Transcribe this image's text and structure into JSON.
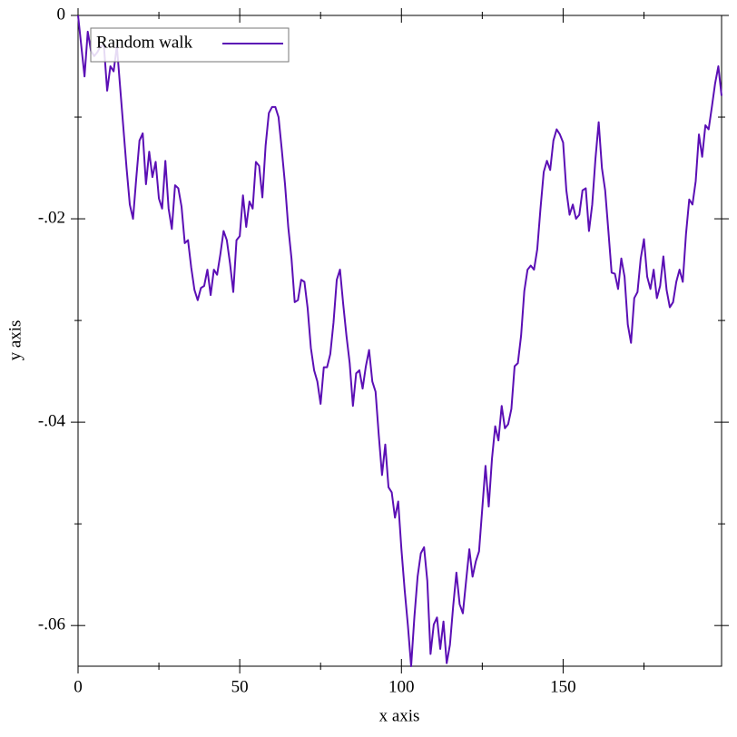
{
  "chart_data": {
    "type": "line",
    "x_label": "x axis",
    "y_label": "y axis",
    "x": [
      0,
      1,
      2,
      3,
      4,
      5,
      6,
      7,
      8,
      9,
      10,
      11,
      12,
      13,
      14,
      15,
      16,
      17,
      18,
      19,
      20,
      21,
      22,
      23,
      24,
      25,
      26,
      27,
      28,
      29,
      30,
      31,
      32,
      33,
      34,
      35,
      36,
      37,
      38,
      39,
      40,
      41,
      42,
      43,
      44,
      45,
      46,
      47,
      48,
      49,
      50,
      51,
      52,
      53,
      54,
      55,
      56,
      57,
      58,
      59,
      60,
      61,
      62,
      63,
      64,
      65,
      66,
      67,
      68,
      69,
      70,
      71,
      72,
      73,
      74,
      75,
      76,
      77,
      78,
      79,
      80,
      81,
      82,
      83,
      84,
      85,
      86,
      87,
      88,
      89,
      90,
      91,
      92,
      93,
      94,
      95,
      96,
      97,
      98,
      99,
      100,
      101,
      102,
      103,
      104,
      105,
      106,
      107,
      108,
      109,
      110,
      111,
      112,
      113,
      114,
      115,
      116,
      117,
      118,
      119,
      120,
      121,
      122,
      123,
      124,
      125,
      126,
      127,
      128,
      129,
      130,
      131,
      132,
      133,
      134,
      135,
      136,
      137,
      138,
      139,
      140,
      141,
      142,
      143,
      144,
      145,
      146,
      147,
      148,
      149,
      150,
      151,
      152,
      153,
      154,
      155,
      156,
      157,
      158,
      159,
      160,
      161,
      162,
      163,
      164,
      165,
      166,
      167,
      168,
      169,
      170,
      171,
      172,
      173,
      174,
      175,
      176,
      177,
      178,
      179,
      180,
      181,
      182,
      183,
      184,
      185,
      186,
      187,
      188,
      189,
      190,
      191,
      192,
      193,
      194,
      195,
      196,
      197,
      198,
      199
    ],
    "series": [
      {
        "name": "Random walk",
        "color": "#5b0fb5",
        "values": [
          0,
          -0.003,
          -0.006,
          -0.0016,
          -0.0035,
          -0.004,
          -0.0036,
          -0.003,
          -0.003,
          -0.0074,
          -0.005,
          -0.0055,
          -0.003,
          -0.007,
          -0.011,
          -0.015,
          -0.0186,
          -0.02,
          -0.016,
          -0.0123,
          -0.0116,
          -0.0166,
          -0.0134,
          -0.0159,
          -0.0144,
          -0.018,
          -0.019,
          -0.0143,
          -0.019,
          -0.021,
          -0.0167,
          -0.017,
          -0.0188,
          -0.0224,
          -0.0221,
          -0.0248,
          -0.027,
          -0.028,
          -0.0268,
          -0.0266,
          -0.025,
          -0.0275,
          -0.025,
          -0.0255,
          -0.0235,
          -0.0212,
          -0.0221,
          -0.0244,
          -0.0272,
          -0.0221,
          -0.0217,
          -0.0177,
          -0.0208,
          -0.0183,
          -0.019,
          -0.0144,
          -0.0148,
          -0.0179,
          -0.0128,
          -0.0096,
          -0.009,
          -0.009,
          -0.01,
          -0.0132,
          -0.0166,
          -0.0208,
          -0.0239,
          -0.0282,
          -0.028,
          -0.026,
          -0.0262,
          -0.0288,
          -0.0327,
          -0.0349,
          -0.036,
          -0.0382,
          -0.0346,
          -0.0346,
          -0.0333,
          -0.0302,
          -0.026,
          -0.025,
          -0.0284,
          -0.0315,
          -0.0342,
          -0.0384,
          -0.0352,
          -0.0349,
          -0.0367,
          -0.0345,
          -0.0329,
          -0.036,
          -0.037,
          -0.0413,
          -0.0452,
          -0.0422,
          -0.0464,
          -0.0469,
          -0.0494,
          -0.0478,
          -0.0525,
          -0.0565,
          -0.06,
          -0.064,
          -0.0592,
          -0.0552,
          -0.0529,
          -0.0523,
          -0.0556,
          -0.0628,
          -0.0599,
          -0.0592,
          -0.0623,
          -0.0596,
          -0.0637,
          -0.0619,
          -0.0581,
          -0.0548,
          -0.0579,
          -0.0588,
          -0.0556,
          -0.0525,
          -0.0552,
          -0.0537,
          -0.0527,
          -0.0485,
          -0.0443,
          -0.0483,
          -0.0436,
          -0.0404,
          -0.0418,
          -0.0384,
          -0.0406,
          -0.0402,
          -0.0387,
          -0.0345,
          -0.0342,
          -0.0315,
          -0.0271,
          -0.025,
          -0.0246,
          -0.025,
          -0.023,
          -0.019,
          -0.0154,
          -0.0143,
          -0.0152,
          -0.0123,
          -0.0112,
          -0.0117,
          -0.0125,
          -0.0172,
          -0.0196,
          -0.0186,
          -0.02,
          -0.0196,
          -0.0172,
          -0.017,
          -0.0212,
          -0.0186,
          -0.0141,
          -0.0105,
          -0.015,
          -0.0172,
          -0.0212,
          -0.0253,
          -0.0254,
          -0.0269,
          -0.0239,
          -0.0257,
          -0.0304,
          -0.0322,
          -0.0278,
          -0.0272,
          -0.0239,
          -0.022,
          -0.0257,
          -0.0269,
          -0.025,
          -0.0278,
          -0.0266,
          -0.0237,
          -0.027,
          -0.0287,
          -0.0282,
          -0.0262,
          -0.025,
          -0.0262,
          -0.0215,
          -0.0181,
          -0.0186,
          -0.0163,
          -0.0117,
          -0.0139,
          -0.0108,
          -0.0112,
          -0.009,
          -0.0067,
          -0.005,
          -0.0079
        ]
      }
    ],
    "xlim": [
      0,
      199
    ],
    "ylim": [
      -0.064,
      0
    ],
    "xticks": [
      0,
      50,
      100,
      150
    ],
    "xticks_minor": [
      25,
      75,
      125,
      175
    ],
    "yticks": [
      0,
      {
        "value": -0.02,
        "label": "-.02"
      },
      {
        "value": -0.04,
        "label": "-.04"
      },
      {
        "value": -0.06,
        "label": "-.06"
      }
    ],
    "yticks_minor": [
      -0.01,
      -0.03,
      -0.05
    ],
    "legend": "top-left"
  }
}
